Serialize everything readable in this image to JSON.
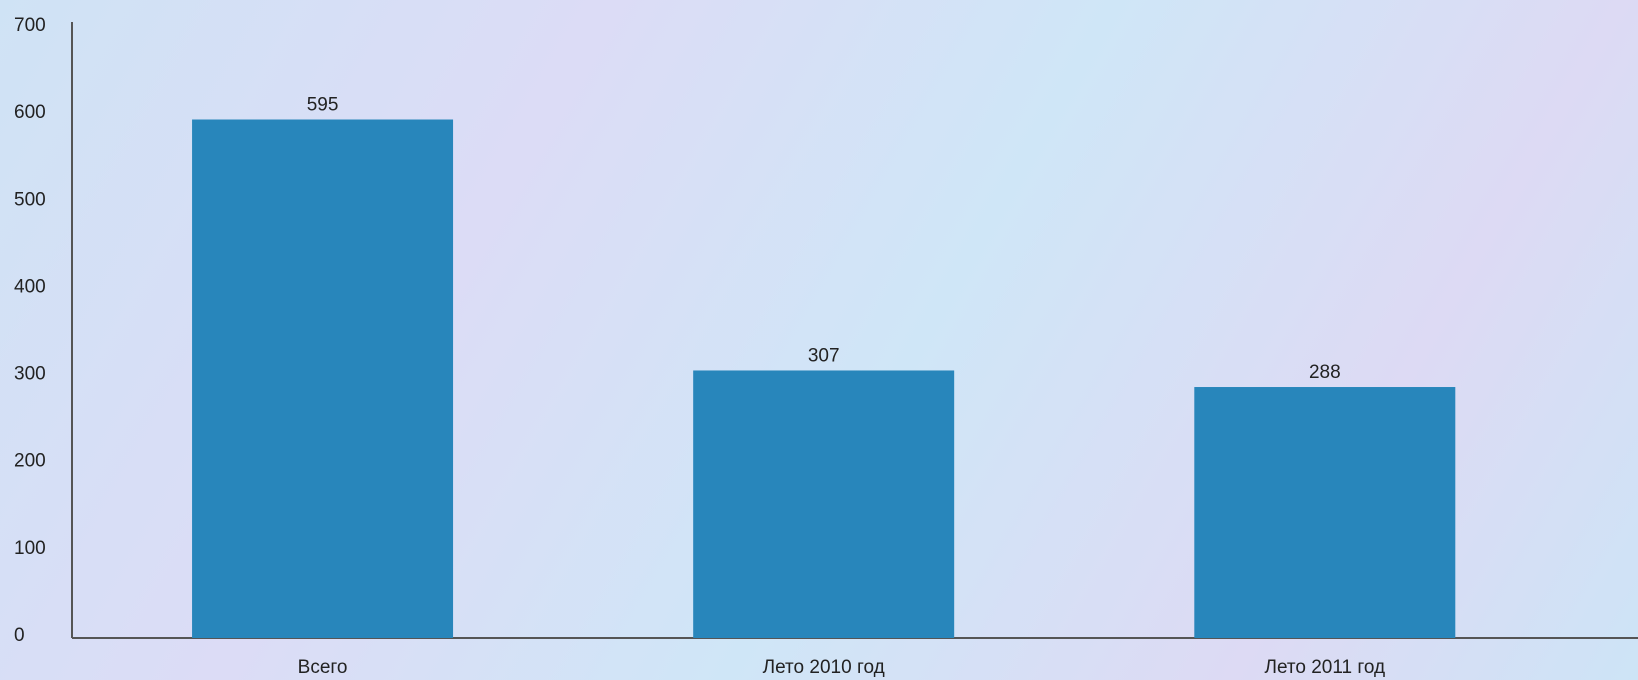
{
  "chart_data": {
    "type": "bar",
    "categories": [
      "Всего",
      "Лето 2010 год",
      "Лето 2011 год"
    ],
    "values": [
      595,
      307,
      288
    ],
    "color": "#2886bb",
    "ylim": [
      0,
      700
    ],
    "yticks": [
      0,
      100,
      200,
      300,
      400,
      500,
      600,
      700
    ],
    "grid": false
  }
}
